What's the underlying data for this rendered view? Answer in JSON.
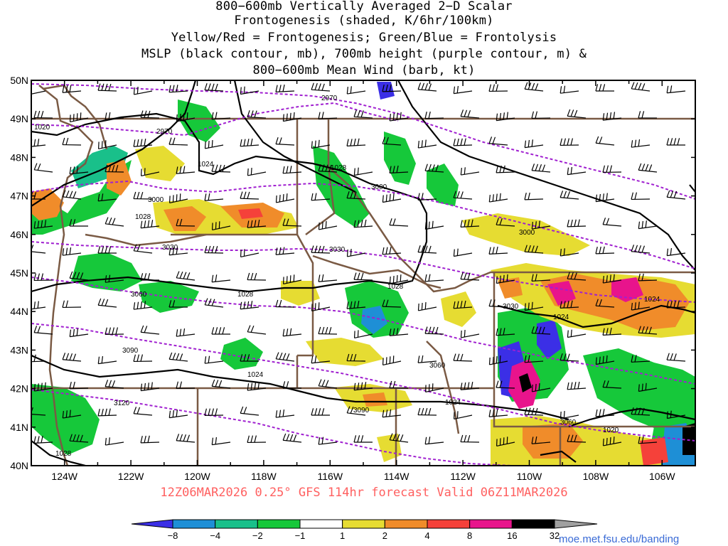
{
  "title": {
    "line1": "800−600mb Vertically Averaged 2−D Scalar",
    "line2": "Frontogenesis (shaded, K/6hr/100km)",
    "line3": "Yellow/Red = Frontogenesis;  Green/Blue = Frontolysis",
    "line4": "MSLP (black contour, mb), 700mb height (purple contour, m) &",
    "line5": "800−600mb Mean Wind (barb, kt)"
  },
  "map": {
    "lon_range": [
      -125,
      -105
    ],
    "lat_range": [
      40,
      50
    ],
    "lat_labels": [
      "50N",
      "49N",
      "48N",
      "47N",
      "46N",
      "45N",
      "44N",
      "43N",
      "42N",
      "41N",
      "40N"
    ],
    "lon_labels": [
      "124W",
      "122W",
      "120W",
      "118W",
      "116W",
      "114W",
      "112W",
      "110W",
      "108W",
      "106W"
    ],
    "pressure_labels": [
      "1020",
      "1024",
      "1028",
      "1028",
      "1028",
      "1028",
      "1024",
      "1024",
      "1024",
      "1024",
      "1020",
      "1028"
    ],
    "height_labels": [
      "2970",
      "2970",
      "3000",
      "3000",
      "3000",
      "3030",
      "3030",
      "3030",
      "3060",
      "3060",
      "3060",
      "3090",
      "3090",
      "3120"
    ]
  },
  "valid_text": "12Z06MAR2026 0.25° GFS 114hr forecast Valid 06Z11MAR2026",
  "colorbar": {
    "labels": [
      "−8",
      "−4",
      "−2",
      "−1",
      "1",
      "2",
      "4",
      "8",
      "16",
      "32"
    ],
    "colors": [
      "#3b2fe6",
      "#1e8fd6",
      "#19c08a",
      "#16c83a",
      "#ffffff",
      "#e6dc32",
      "#f08c2a",
      "#f5413a",
      "#e8148c",
      "#000000",
      "#a0a0a0"
    ]
  },
  "credit": "moe.met.fsu.edu/banding"
}
